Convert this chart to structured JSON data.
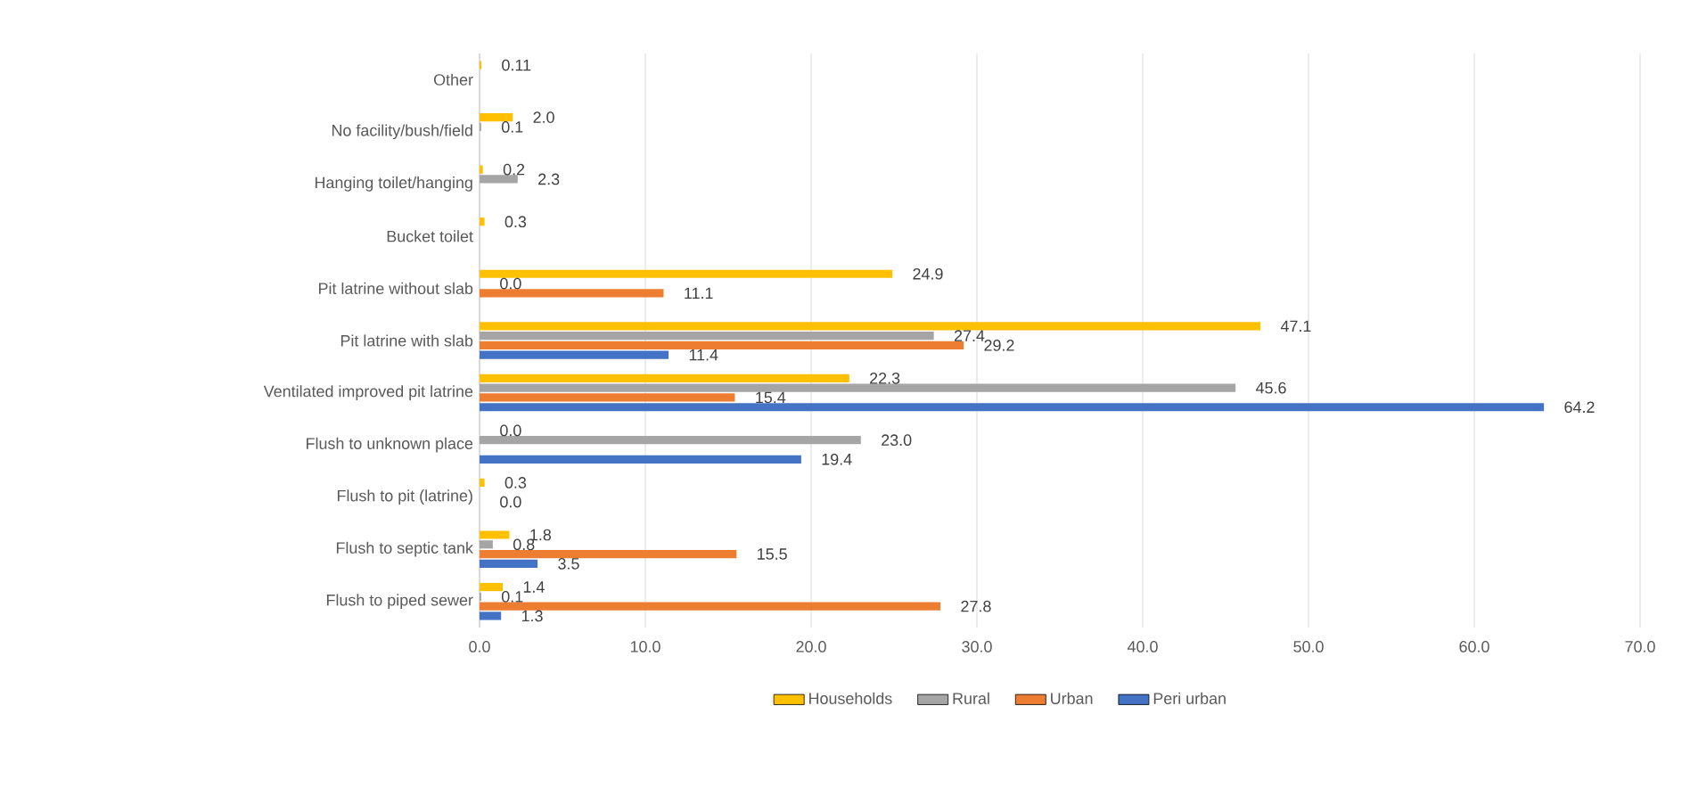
{
  "chart_data": {
    "type": "bar",
    "orientation": "horizontal",
    "categories": [
      "Other",
      "No facility/bush/field",
      "Hanging toilet/hanging",
      "Bucket toilet",
      "Pit latrine without slab",
      "Pit latrine with slab",
      "Ventilated improved pit latrine",
      "Flush to unknown place",
      "Flush to pit (latrine)",
      "Flush to septic tank",
      "Flush to piped sewer"
    ],
    "series": [
      {
        "name": "Households",
        "color": "#ffc000",
        "values": [
          0.11,
          2.0,
          0.2,
          0.3,
          24.9,
          47.1,
          22.3,
          0.0,
          0.3,
          1.8,
          1.4
        ],
        "value_labels": [
          "0.11",
          "2.0",
          "0.2",
          "0.3",
          "24.9",
          "47.1",
          "22.3",
          "0.0",
          "0.3",
          "1.8",
          "1.4"
        ]
      },
      {
        "name": "Rural",
        "color": "#a5a5a5",
        "values": [
          null,
          0.1,
          2.3,
          null,
          0.0,
          27.4,
          45.6,
          23.0,
          null,
          0.8,
          0.1
        ],
        "value_labels": [
          null,
          "0.1",
          "2.3",
          null,
          "0.0",
          "27.4",
          "45.6",
          "23.0",
          null,
          "0.8",
          "0.1"
        ]
      },
      {
        "name": "Urban",
        "color": "#ed7d31",
        "values": [
          null,
          null,
          null,
          null,
          11.1,
          29.2,
          15.4,
          null,
          0.0,
          15.5,
          27.8
        ],
        "value_labels": [
          null,
          null,
          null,
          null,
          "11.1",
          "29.2",
          "15.4",
          null,
          "0.0",
          "15.5",
          "27.8"
        ]
      },
      {
        "name": "Peri urban",
        "color": "#4472c4",
        "values": [
          null,
          null,
          null,
          null,
          null,
          11.4,
          64.2,
          19.4,
          null,
          3.5,
          1.3
        ],
        "value_labels": [
          null,
          null,
          null,
          null,
          null,
          "11.4",
          "64.2",
          "19.4",
          null,
          "3.5",
          "1.3"
        ]
      }
    ],
    "xlim": [
      0,
      70
    ],
    "xticks": [
      {
        "value": 0,
        "label": "0.0"
      },
      {
        "value": 10,
        "label": "10.0"
      },
      {
        "value": 20,
        "label": "20.0"
      },
      {
        "value": 30,
        "label": "30.0"
      },
      {
        "value": 40,
        "label": "40.0"
      },
      {
        "value": 50,
        "label": "50.0"
      },
      {
        "value": 60,
        "label": "60.0"
      },
      {
        "value": 70,
        "label": "70.0"
      }
    ],
    "grid": "x",
    "legend": "bottom"
  }
}
